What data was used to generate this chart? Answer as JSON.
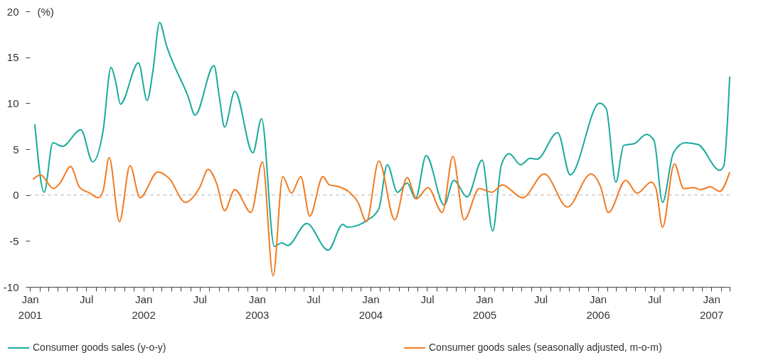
{
  "chart_data": {
    "type": "line",
    "ylabel": "(%)",
    "xlim": [
      "2001-01-01",
      "2007-03-01"
    ],
    "ylim": [
      -10,
      20
    ],
    "yticks": [
      -10,
      -5,
      0,
      5,
      10,
      15,
      20
    ],
    "xticks": [
      {
        "value": "2001-01",
        "label": "Jan 2001"
      },
      {
        "value": "2001-02",
        "label": null
      },
      {
        "value": "2001-03",
        "label": null
      },
      {
        "value": "2001-04",
        "label": null
      },
      {
        "value": "2001-05",
        "label": null
      },
      {
        "value": "2001-06",
        "label": null
      },
      {
        "value": "2001-07",
        "label": "Jul"
      },
      {
        "value": "2001-08",
        "label": null
      },
      {
        "value": "2001-09",
        "label": null
      },
      {
        "value": "2001-10",
        "label": null
      },
      {
        "value": "2001-11",
        "label": null
      },
      {
        "value": "2001-12",
        "label": null
      },
      {
        "value": "2002-01",
        "label": "Jan 2002"
      },
      {
        "value": "2002-02",
        "label": null
      },
      {
        "value": "2002-03",
        "label": null
      },
      {
        "value": "2002-04",
        "label": null
      },
      {
        "value": "2002-05",
        "label": null
      },
      {
        "value": "2002-06",
        "label": null
      },
      {
        "value": "2002-07",
        "label": "Jul"
      },
      {
        "value": "2002-08",
        "label": null
      },
      {
        "value": "2002-09",
        "label": null
      },
      {
        "value": "2002-10",
        "label": null
      },
      {
        "value": "2002-11",
        "label": null
      },
      {
        "value": "2002-12",
        "label": null
      },
      {
        "value": "2003-01",
        "label": "Jan 2003"
      },
      {
        "value": "2003-02",
        "label": null
      },
      {
        "value": "2003-03",
        "label": null
      },
      {
        "value": "2003-04",
        "label": null
      },
      {
        "value": "2003-05",
        "label": null
      },
      {
        "value": "2003-06",
        "label": null
      },
      {
        "value": "2003-07",
        "label": "Jul"
      },
      {
        "value": "2003-08",
        "label": null
      },
      {
        "value": "2003-09",
        "label": null
      },
      {
        "value": "2003-10",
        "label": null
      },
      {
        "value": "2003-11",
        "label": null
      },
      {
        "value": "2003-12",
        "label": null
      },
      {
        "value": "2004-01",
        "label": "Jan 2004"
      },
      {
        "value": "2004-02",
        "label": null
      },
      {
        "value": "2004-03",
        "label": null
      },
      {
        "value": "2004-04",
        "label": null
      },
      {
        "value": "2004-05",
        "label": null
      },
      {
        "value": "2004-06",
        "label": null
      },
      {
        "value": "2004-07",
        "label": "Jul"
      },
      {
        "value": "2004-08",
        "label": null
      },
      {
        "value": "2004-09",
        "label": null
      },
      {
        "value": "2004-10",
        "label": null
      },
      {
        "value": "2004-11",
        "label": null
      },
      {
        "value": "2004-12",
        "label": null
      },
      {
        "value": "2005-01",
        "label": "Jan 2005"
      },
      {
        "value": "2005-02",
        "label": null
      },
      {
        "value": "2005-03",
        "label": null
      },
      {
        "value": "2005-04",
        "label": null
      },
      {
        "value": "2005-05",
        "label": null
      },
      {
        "value": "2005-06",
        "label": null
      },
      {
        "value": "2005-07",
        "label": "Jul"
      },
      {
        "value": "2005-08",
        "label": null
      },
      {
        "value": "2005-09",
        "label": null
      },
      {
        "value": "2005-10",
        "label": null
      },
      {
        "value": "2005-11",
        "label": null
      },
      {
        "value": "2005-12",
        "label": null
      },
      {
        "value": "2006-01",
        "label": "Jan 2006"
      },
      {
        "value": "2006-02",
        "label": null
      },
      {
        "value": "2006-03",
        "label": null
      },
      {
        "value": "2006-04",
        "label": null
      },
      {
        "value": "2006-05",
        "label": null
      },
      {
        "value": "2006-06",
        "label": null
      },
      {
        "value": "2006-07",
        "label": "Jul"
      },
      {
        "value": "2006-08",
        "label": null
      },
      {
        "value": "2006-09",
        "label": null
      },
      {
        "value": "2006-10",
        "label": null
      },
      {
        "value": "2006-11",
        "label": null
      },
      {
        "value": "2006-12",
        "label": null
      },
      {
        "value": "2007-01",
        "label": "Jan 2007"
      },
      {
        "value": "2007-02",
        "label": null
      },
      {
        "value": "2007-03",
        "label": null
      }
    ],
    "ref_lines": [
      {
        "axis": "y",
        "value": 0,
        "color": "#bbbbbb",
        "line_style": "dashed"
      }
    ],
    "legend": "bottom",
    "series": [
      {
        "name": "Consumer goods sales (y-o-y)",
        "color": "#1aab9b",
        "x": [
          "2001-01-17",
          "2001-02-16",
          "2001-03-16",
          "2001-04-15",
          "2001-06-14",
          "2001-07-22",
          "2001-08-24",
          "2001-09-19",
          "2001-10-04",
          "2001-10-19",
          "2001-12-16",
          "2002-01-13",
          "2002-02-01",
          "2002-02-22",
          "2002-03-16",
          "2002-05-25",
          "2002-06-16",
          "2002-08-16",
          "2002-09-02",
          "2002-09-19",
          "2002-10-22",
          "2002-12-19",
          "2003-01-16",
          "2003-02-26",
          "2003-03-22",
          "2003-04-10",
          "2003-06-10",
          "2003-08-18",
          "2003-10-04",
          "2003-10-19",
          "2003-12-19",
          "2004-01-28",
          "2004-02-24",
          "2004-03-28",
          "2004-04-28",
          "2004-05-25",
          "2004-06-28",
          "2004-08-25",
          "2004-09-25",
          "2004-11-07",
          "2004-12-25",
          "2005-01-28",
          "2005-02-25",
          "2005-03-22",
          "2005-04-28",
          "2005-05-28",
          "2005-06-19",
          "2005-08-25",
          "2005-10-04",
          "2006-01-07",
          "2006-01-28",
          "2006-02-28",
          "2006-03-25",
          "2006-04-28",
          "2006-06-07",
          "2006-07-01",
          "2006-07-28",
          "2006-09-01",
          "2006-10-09",
          "2006-11-19",
          "2007-01-28",
          "2007-02-10",
          "2007-03-01"
        ],
        "values": [
          7.7,
          0.3,
          5.7,
          5.3,
          7.1,
          3.6,
          6.9,
          13.9,
          12.3,
          9.9,
          14.4,
          10.3,
          13.6,
          18.8,
          16.3,
          10.7,
          8.7,
          14.1,
          10.7,
          7.4,
          11.3,
          4.6,
          8.3,
          -5.6,
          -5.2,
          -5.5,
          -3.1,
          -6.0,
          -3.2,
          -3.5,
          -2.8,
          -1.5,
          3.3,
          0.3,
          1.3,
          -0.4,
          4.3,
          -1.1,
          1.6,
          -0.2,
          3.8,
          -3.9,
          3.3,
          4.5,
          3.3,
          4.0,
          3.9,
          6.8,
          2.2,
          10.0,
          9.4,
          1.4,
          5.4,
          5.6,
          6.6,
          5.9,
          -0.8,
          4.6,
          5.7,
          5.5,
          2.7,
          3.2,
          12.9
        ]
      },
      {
        "name": "Consumer goods sales (seasonally adjusted, m-o-m)",
        "color": "#f07b22",
        "x": [
          "2001-01-11",
          "2001-02-04",
          "2001-03-18",
          "2001-04-08",
          "2001-05-12",
          "2001-06-09",
          "2001-07-13",
          "2001-08-09",
          "2001-08-24",
          "2001-09-13",
          "2001-10-16",
          "2001-11-19",
          "2001-12-21",
          "2002-02-16",
          "2002-03-25",
          "2002-05-16",
          "2002-07-02",
          "2002-07-28",
          "2002-08-25",
          "2002-09-19",
          "2002-10-22",
          "2002-12-13",
          "2003-01-19",
          "2003-02-22",
          "2003-03-25",
          "2003-04-22",
          "2003-05-22",
          "2003-06-20",
          "2003-08-01",
          "2003-08-22",
          "2003-09-22",
          "2003-11-22",
          "2003-12-19",
          "2004-01-28",
          "2004-03-19",
          "2004-04-28",
          "2004-05-28",
          "2004-07-04",
          "2004-08-19",
          "2004-09-22",
          "2004-10-28",
          "2004-12-16",
          "2005-01-25",
          "2005-02-28",
          "2005-05-04",
          "2005-07-13",
          "2005-09-25",
          "2005-12-10",
          "2006-01-10",
          "2006-02-04",
          "2006-04-01",
          "2006-05-07",
          "2006-06-22",
          "2006-07-07",
          "2006-07-28",
          "2006-09-04",
          "2006-10-04",
          "2006-11-04",
          "2006-11-28",
          "2006-12-28",
          "2007-01-28",
          "2007-03-01"
        ],
        "values": [
          1.7,
          2.2,
          0.7,
          1.3,
          3.1,
          0.9,
          0.2,
          -0.3,
          0.4,
          4.1,
          -2.9,
          3.2,
          -0.3,
          2.5,
          1.8,
          -0.8,
          0.9,
          2.8,
          1.2,
          -1.7,
          0.6,
          -1.9,
          3.6,
          -8.8,
          2.0,
          0.2,
          2.0,
          -2.3,
          2.0,
          1.1,
          0.9,
          -0.8,
          -2.9,
          3.7,
          -2.7,
          1.9,
          -0.4,
          0.8,
          -1.9,
          4.2,
          -2.7,
          0.7,
          0.3,
          1.1,
          -0.3,
          2.3,
          -1.3,
          2.3,
          0.9,
          -1.9,
          1.6,
          0.2,
          1.4,
          0.7,
          -3.5,
          3.4,
          0.7,
          0.8,
          0.6,
          0.9,
          0.4,
          2.5
        ]
      }
    ]
  }
}
